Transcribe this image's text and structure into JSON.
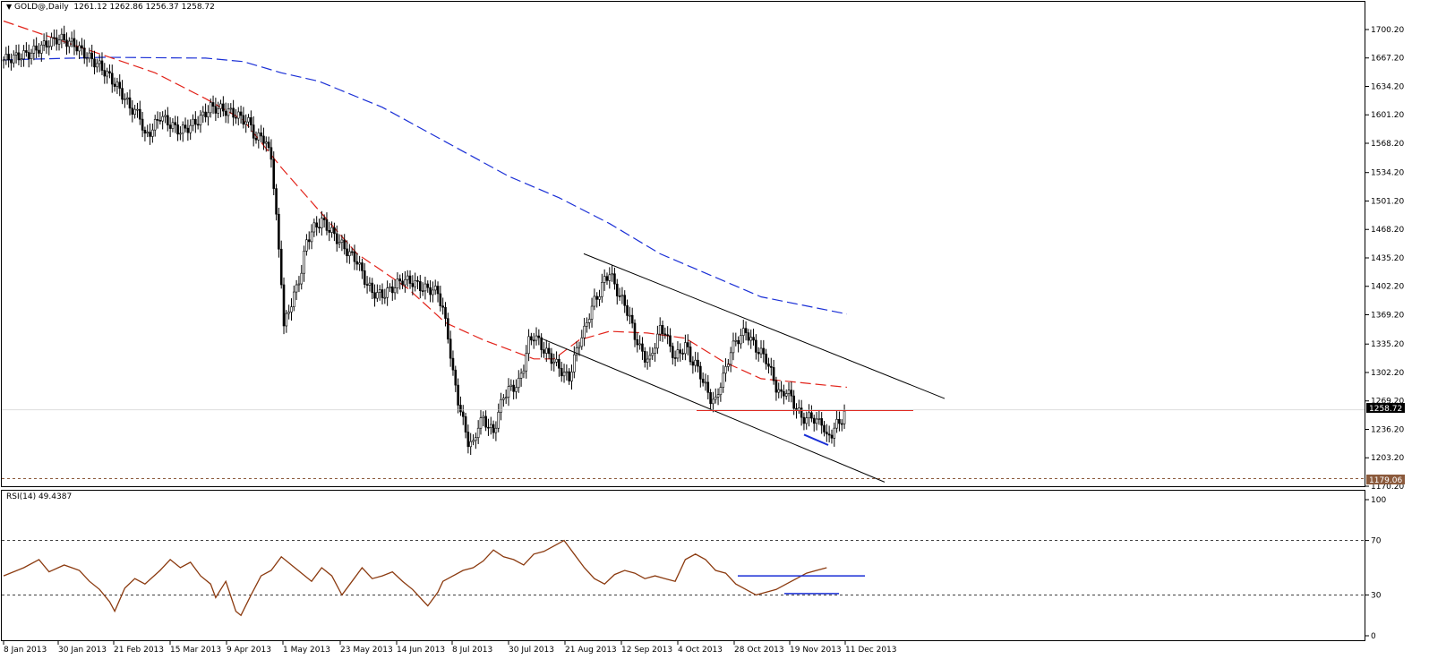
{
  "header": {
    "symbol": "GOLD@,Daily",
    "ohlc": "1261.12 1262.86 1256.37 1258.72",
    "collapse_icon": "triangle-down-icon"
  },
  "rsi_header": {
    "label": "RSI(14) 49.4387"
  },
  "chart_data": [
    {
      "type": "candlestick",
      "title": "GOLD@,Daily",
      "ohlc_last": {
        "open": 1261.12,
        "high": 1262.86,
        "low": 1256.37,
        "close": 1258.72
      },
      "current_price_label": "1258.72",
      "support_price_label": "1179.06",
      "ylim": [
        1170.2,
        1722.0
      ],
      "y_ticks": [
        "1700.20",
        "1667.20",
        "1634.20",
        "1601.20",
        "1568.20",
        "1534.20",
        "1501.20",
        "1468.20",
        "1435.20",
        "1402.20",
        "1369.20",
        "1335.20",
        "1302.20",
        "1269.20",
        "1236.20",
        "1203.20",
        "1170.20"
      ],
      "x_ticks": [
        "8 Jan 2013",
        "30 Jan 2013",
        "21 Feb 2013",
        "15 Mar 2013",
        "9 Apr 2013",
        "1 May 2013",
        "23 May 2013",
        "14 Jun 2013",
        "8 Jul 2013",
        "30 Jul 2013",
        "21 Aug 2013",
        "12 Sep 2013",
        "4 Oct 2013",
        "28 Oct 2013",
        "19 Nov 2013",
        "11 Dec 2013"
      ],
      "close_path": [
        [
          0,
          1665
        ],
        [
          10,
          1672
        ],
        [
          18,
          1685
        ],
        [
          22,
          1690
        ],
        [
          28,
          1683
        ],
        [
          32,
          1672
        ],
        [
          38,
          1658
        ],
        [
          42,
          1645
        ],
        [
          46,
          1630
        ],
        [
          50,
          1610
        ],
        [
          54,
          1600
        ],
        [
          56,
          1575
        ],
        [
          59,
          1585
        ],
        [
          62,
          1600
        ],
        [
          66,
          1590
        ],
        [
          70,
          1582
        ],
        [
          74,
          1588
        ],
        [
          78,
          1597
        ],
        [
          82,
          1610
        ],
        [
          86,
          1608
        ],
        [
          90,
          1604
        ],
        [
          94,
          1598
        ],
        [
          98,
          1590
        ],
        [
          100,
          1570
        ],
        [
          102,
          1580
        ],
        [
          104,
          1565
        ],
        [
          106,
          1555
        ],
        [
          108,
          1480
        ],
        [
          110,
          1410
        ],
        [
          111,
          1355
        ],
        [
          113,
          1375
        ],
        [
          116,
          1400
        ],
        [
          118,
          1420
        ],
        [
          120,
          1455
        ],
        [
          123,
          1470
        ],
        [
          126,
          1478
        ],
        [
          130,
          1465
        ],
        [
          134,
          1450
        ],
        [
          137,
          1440
        ],
        [
          140,
          1432
        ],
        [
          143,
          1410
        ],
        [
          146,
          1395
        ],
        [
          150,
          1392
        ],
        [
          154,
          1400
        ],
        [
          158,
          1410
        ],
        [
          162,
          1407
        ],
        [
          166,
          1400
        ],
        [
          170,
          1398
        ],
        [
          172,
          1395
        ],
        [
          174,
          1375
        ],
        [
          176,
          1345
        ],
        [
          178,
          1300
        ],
        [
          180,
          1270
        ],
        [
          182,
          1245
        ],
        [
          184,
          1222
        ],
        [
          186,
          1218
        ],
        [
          188,
          1242
        ],
        [
          190,
          1248
        ],
        [
          192,
          1240
        ],
        [
          194,
          1232
        ],
        [
          196,
          1255
        ],
        [
          198,
          1275
        ],
        [
          200,
          1282
        ],
        [
          202,
          1285
        ],
        [
          204,
          1290
        ],
        [
          206,
          1310
        ],
        [
          208,
          1338
        ],
        [
          210,
          1345
        ],
        [
          212,
          1338
        ],
        [
          214,
          1328
        ],
        [
          216,
          1322
        ],
        [
          218,
          1315
        ],
        [
          220,
          1308
        ],
        [
          222,
          1300
        ],
        [
          224,
          1296
        ],
        [
          226,
          1318
        ],
        [
          228,
          1338
        ],
        [
          230,
          1350
        ],
        [
          232,
          1370
        ],
        [
          234,
          1385
        ],
        [
          236,
          1395
        ],
        [
          238,
          1410
        ],
        [
          240,
          1418
        ],
        [
          242,
          1404
        ],
        [
          244,
          1390
        ],
        [
          246,
          1382
        ],
        [
          248,
          1365
        ],
        [
          250,
          1345
        ],
        [
          252,
          1330
        ],
        [
          254,
          1320
        ],
        [
          256,
          1316
        ],
        [
          258,
          1336
        ],
        [
          260,
          1352
        ],
        [
          262,
          1350
        ],
        [
          264,
          1330
        ],
        [
          266,
          1320
        ],
        [
          268,
          1325
        ],
        [
          270,
          1335
        ],
        [
          272,
          1318
        ],
        [
          274,
          1312
        ],
        [
          276,
          1300
        ],
        [
          278,
          1285
        ],
        [
          280,
          1272
        ],
        [
          282,
          1268
        ],
        [
          284,
          1290
        ],
        [
          286,
          1305
        ],
        [
          288,
          1328
        ],
        [
          290,
          1338
        ],
        [
          292,
          1345
        ],
        [
          294,
          1350
        ],
        [
          296,
          1340
        ],
        [
          298,
          1330
        ],
        [
          300,
          1325
        ],
        [
          302,
          1318
        ],
        [
          304,
          1302
        ],
        [
          306,
          1285
        ],
        [
          308,
          1275
        ],
        [
          310,
          1282
        ],
        [
          312,
          1272
        ],
        [
          314,
          1260
        ],
        [
          316,
          1250
        ],
        [
          318,
          1248
        ],
        [
          320,
          1252
        ],
        [
          322,
          1244
        ],
        [
          324,
          1246
        ],
        [
          326,
          1225
        ],
        [
          328,
          1232
        ],
        [
          330,
          1242
        ],
        [
          332,
          1248
        ],
        [
          334,
          1260
        ]
      ],
      "rsi": {
        "ylim": [
          0,
          100
        ],
        "levels": [
          30,
          70
        ],
        "y_ticks": [
          "100",
          "70",
          "30",
          "0"
        ],
        "value_last": 49.4387,
        "path": [
          [
            0,
            44
          ],
          [
            8,
            50
          ],
          [
            14,
            56
          ],
          [
            18,
            47
          ],
          [
            24,
            52
          ],
          [
            30,
            48
          ],
          [
            34,
            40
          ],
          [
            38,
            34
          ],
          [
            42,
            25
          ],
          [
            44,
            18
          ],
          [
            48,
            35
          ],
          [
            52,
            42
          ],
          [
            56,
            38
          ],
          [
            62,
            48
          ],
          [
            66,
            56
          ],
          [
            70,
            50
          ],
          [
            74,
            54
          ],
          [
            78,
            44
          ],
          [
            82,
            38
          ],
          [
            84,
            28
          ],
          [
            86,
            34
          ],
          [
            88,
            40
          ],
          [
            92,
            18
          ],
          [
            94,
            15
          ],
          [
            98,
            30
          ],
          [
            102,
            44
          ],
          [
            106,
            48
          ],
          [
            110,
            58
          ],
          [
            114,
            52
          ],
          [
            118,
            46
          ],
          [
            122,
            40
          ],
          [
            126,
            50
          ],
          [
            130,
            44
          ],
          [
            134,
            30
          ],
          [
            138,
            40
          ],
          [
            142,
            50
          ],
          [
            146,
            42
          ],
          [
            150,
            44
          ],
          [
            154,
            47
          ],
          [
            158,
            40
          ],
          [
            162,
            34
          ],
          [
            166,
            26
          ],
          [
            168,
            22
          ],
          [
            172,
            32
          ],
          [
            174,
            40
          ],
          [
            178,
            44
          ],
          [
            182,
            48
          ],
          [
            186,
            50
          ],
          [
            190,
            55
          ],
          [
            194,
            63
          ],
          [
            198,
            58
          ],
          [
            202,
            56
          ],
          [
            206,
            52
          ],
          [
            210,
            60
          ],
          [
            214,
            62
          ],
          [
            218,
            66
          ],
          [
            222,
            70
          ],
          [
            226,
            60
          ],
          [
            230,
            50
          ],
          [
            234,
            42
          ],
          [
            238,
            38
          ],
          [
            242,
            45
          ],
          [
            246,
            48
          ],
          [
            250,
            46
          ],
          [
            254,
            42
          ],
          [
            258,
            44
          ],
          [
            262,
            42
          ],
          [
            266,
            40
          ],
          [
            270,
            56
          ],
          [
            274,
            60
          ],
          [
            278,
            56
          ],
          [
            282,
            48
          ],
          [
            286,
            46
          ],
          [
            290,
            38
          ],
          [
            294,
            34
          ],
          [
            298,
            30
          ],
          [
            302,
            32
          ],
          [
            306,
            34
          ],
          [
            310,
            38
          ],
          [
            314,
            42
          ],
          [
            318,
            46
          ],
          [
            322,
            48
          ],
          [
            326,
            50
          ]
        ]
      }
    }
  ]
}
